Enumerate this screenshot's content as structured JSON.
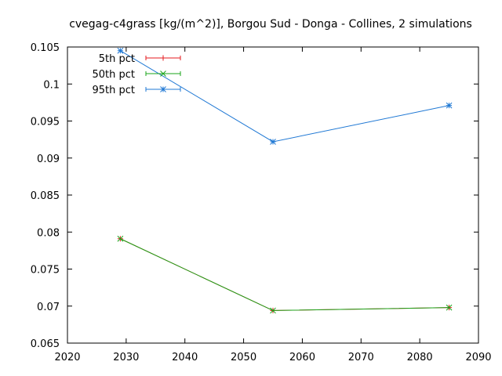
{
  "chart_data": {
    "type": "line",
    "title": "cvegag-c4grass [kg/(m^2)], Borgou Sud - Donga - Collines, 2 simulations",
    "xlabel": "",
    "ylabel": "",
    "xlim": [
      2020,
      2090
    ],
    "ylim": [
      0.065,
      0.105
    ],
    "x_ticks": [
      "2020",
      "2030",
      "2040",
      "2050",
      "2060",
      "2070",
      "2080",
      "2090"
    ],
    "y_ticks": [
      "0.065",
      "0.07",
      "0.075",
      "0.08",
      "0.085",
      "0.09",
      "0.095",
      "0.1",
      "0.105"
    ],
    "grid": false,
    "legend_position": "top-left",
    "series": [
      {
        "name": "5th pct",
        "color": "#e41a1c",
        "x": [
          2029,
          2055,
          2085
        ],
        "values": [
          0.0791,
          0.0694,
          0.0698
        ]
      },
      {
        "name": "50th pct",
        "color": "#1aa51a",
        "x": [
          2029,
          2055,
          2085
        ],
        "values": [
          0.0791,
          0.0694,
          0.0698
        ]
      },
      {
        "name": "95th pct",
        "color": "#1f78d4",
        "x": [
          2029,
          2055,
          2085
        ],
        "values": [
          0.1045,
          0.0922,
          0.0971
        ]
      }
    ]
  }
}
